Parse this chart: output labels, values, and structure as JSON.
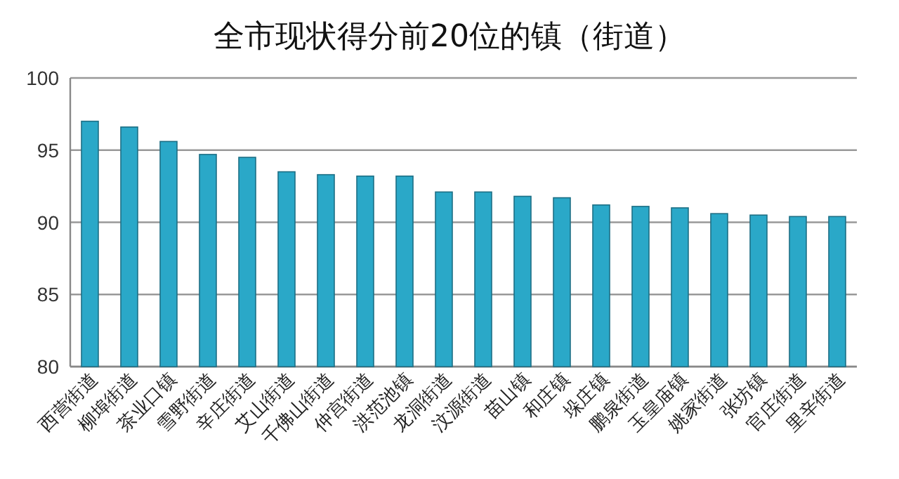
{
  "chart_data": {
    "type": "bar",
    "title": "全市现状得分前20位的镇（街道）",
    "categories": [
      "西营街道",
      "柳埠街道",
      "茶业口镇",
      "雪野街道",
      "辛庄街道",
      "艾山街道",
      "千佛山街道",
      "仲宫街道",
      "洪范池镇",
      "龙洞街道",
      "汶源街道",
      "苗山镇",
      "和庄镇",
      "垛庄镇",
      "鹏泉街道",
      "玉皇庙镇",
      "姚家街道",
      "张坊镇",
      "官庄街道",
      "里辛街道"
    ],
    "values": [
      97.0,
      96.6,
      95.6,
      94.7,
      94.5,
      93.5,
      93.3,
      93.2,
      93.2,
      92.1,
      92.1,
      91.8,
      91.7,
      91.2,
      91.1,
      91.0,
      90.6,
      90.5,
      90.4,
      90.4
    ],
    "color": "#2aa8c8",
    "ylim": [
      80,
      100
    ],
    "yticks": [
      80,
      85,
      90,
      95,
      100
    ],
    "grid": "y"
  }
}
